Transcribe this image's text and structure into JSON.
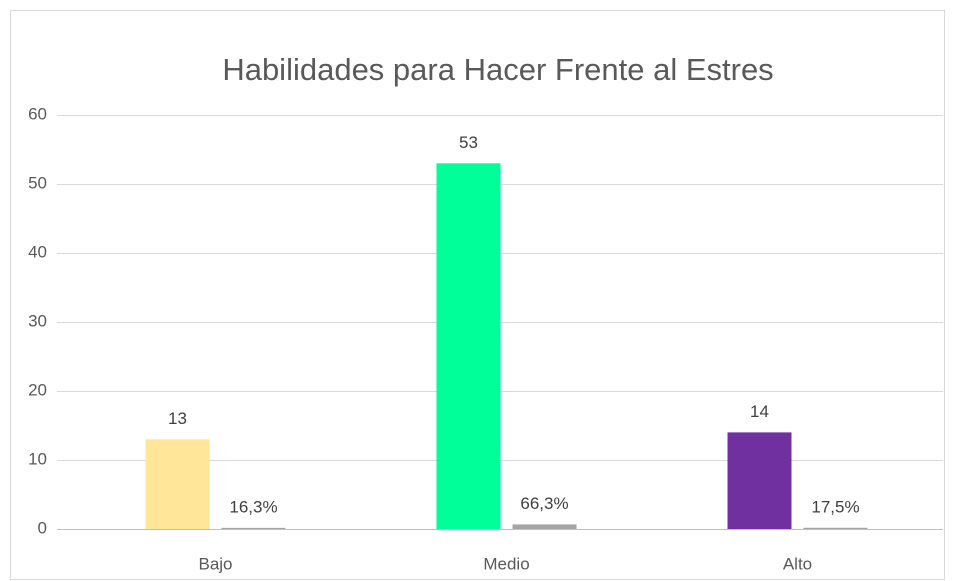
{
  "chart_data": {
    "type": "bar",
    "title": "Habilidades para Hacer Frente al Estres",
    "categories": [
      "Bajo",
      "Medio",
      "Alto"
    ],
    "series": [
      {
        "colors": [
          "#ffe699",
          "#00ff99",
          "#7030a0"
        ],
        "values": [
          13,
          53,
          14
        ]
      },
      {
        "color": "#a5a5a5",
        "values": [
          0.163,
          0.663,
          0.175
        ],
        "value_labels": [
          "16,3%",
          "66,3%",
          "17,5%"
        ]
      }
    ],
    "ylim": [
      0,
      60
    ],
    "yticks": [
      0,
      10,
      20,
      30,
      40,
      50,
      60
    ],
    "grid": true
  }
}
